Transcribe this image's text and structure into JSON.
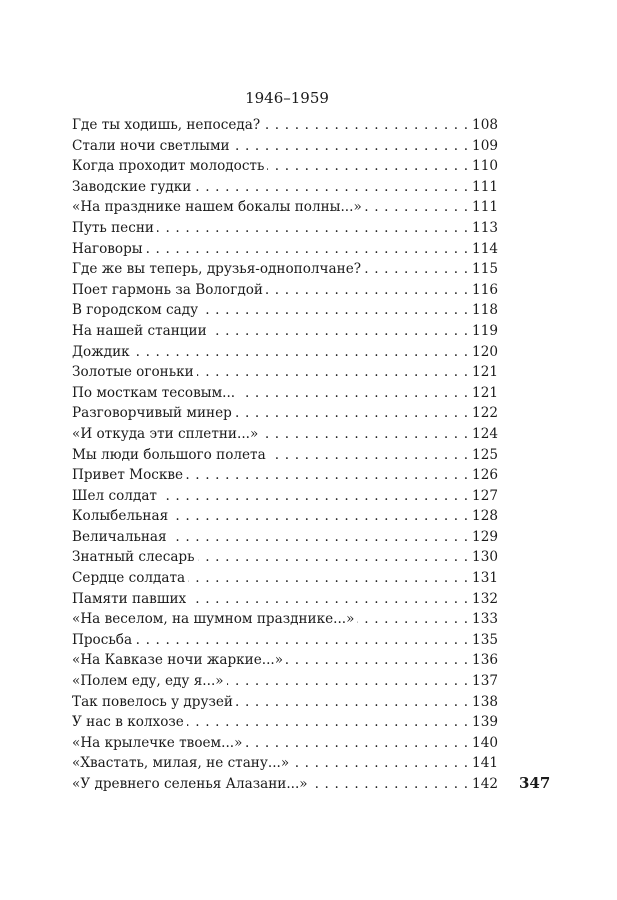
{
  "section_heading": "1946–1959",
  "entries": [
    {
      "title": "Где ты ходишь, непоседа?",
      "page": "108"
    },
    {
      "title": "Стали ночи светлыми",
      "page": "109"
    },
    {
      "title": "Когда проходит молодость",
      "page": "110"
    },
    {
      "title": "Заводские гудки",
      "page": "111"
    },
    {
      "title": "«На празднике нашем бокалы полны...»",
      "page": "111"
    },
    {
      "title": "Путь песни",
      "page": "113"
    },
    {
      "title": "Наговоры",
      "page": "114"
    },
    {
      "title": "Где же вы теперь, друзья-однополчане?",
      "page": "115"
    },
    {
      "title": "Поет гармонь за Вологдой",
      "page": "116"
    },
    {
      "title": "В городском саду",
      "page": "118"
    },
    {
      "title": "На нашей станции",
      "page": "119"
    },
    {
      "title": "Дождик",
      "page": "120"
    },
    {
      "title": "Золотые огоньки",
      "page": "121"
    },
    {
      "title": "По мосткам тесовым...",
      "page": "121"
    },
    {
      "title": "Разговорчивый минер",
      "page": "122"
    },
    {
      "title": "«И откуда эти сплетни...»",
      "page": "124"
    },
    {
      "title": "Мы люди большого полета",
      "page": "125"
    },
    {
      "title": "Привет Москве",
      "page": "126"
    },
    {
      "title": "Шел солдат",
      "page": "127"
    },
    {
      "title": "Колыбельная",
      "page": "128"
    },
    {
      "title": "Величальная",
      "page": "129"
    },
    {
      "title": "Знатный слесарь",
      "page": "130"
    },
    {
      "title": "Сердце солдата",
      "page": "131"
    },
    {
      "title": "Памяти павших",
      "page": "132"
    },
    {
      "title": "«На веселом, на шумном празднике...»",
      "page": "133"
    },
    {
      "title": "Просьба",
      "page": "135"
    },
    {
      "title": "«На Кавказе ночи жаркие...»",
      "page": "136"
    },
    {
      "title": "«Полем еду, еду я...»",
      "page": "137"
    },
    {
      "title": "Так повелось у друзей",
      "page": "138"
    },
    {
      "title": "У нас в колхозе",
      "page": "139"
    },
    {
      "title": "«На крылечке твоем...»",
      "page": "140"
    },
    {
      "title": "«Хвастать, милая, не стану...»",
      "page": "141"
    },
    {
      "title": "«У древнего селенья Алазани...»",
      "page": "142"
    }
  ],
  "folio": "347"
}
